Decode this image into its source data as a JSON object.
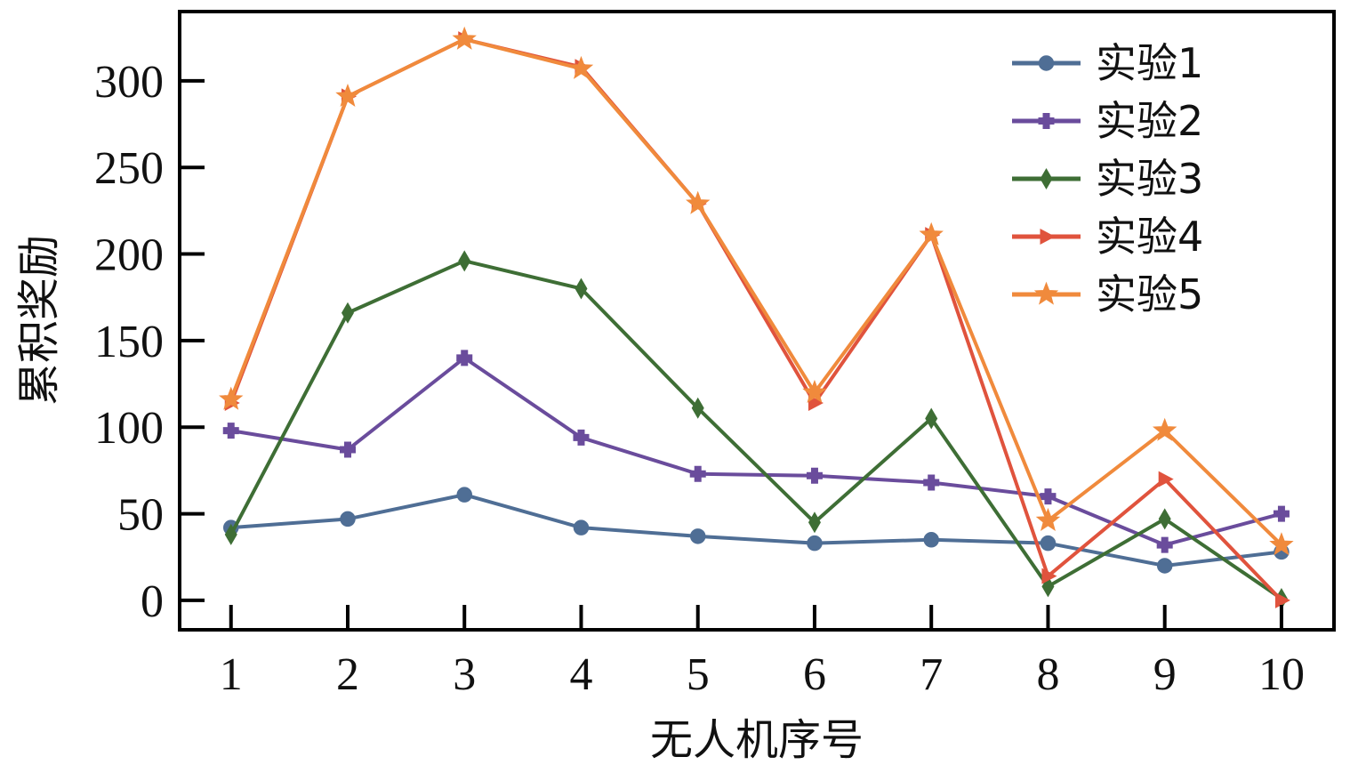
{
  "chart_data": {
    "type": "line",
    "title": "",
    "xlabel": "无人机序号",
    "ylabel": "累积奖励",
    "x": [
      1,
      2,
      3,
      4,
      5,
      6,
      7,
      8,
      9,
      10
    ],
    "xticks": [
      "1",
      "2",
      "3",
      "4",
      "5",
      "6",
      "7",
      "8",
      "9",
      "10"
    ],
    "yticks": [
      0,
      50,
      100,
      150,
      200,
      250,
      300
    ],
    "xlim": [
      0.56,
      10.45
    ],
    "ylim": [
      -17,
      340
    ],
    "grid": false,
    "legend_position": "top-right",
    "series": [
      {
        "name": "实验1",
        "color": "#4f6e95",
        "marker": "circle",
        "values": [
          42,
          47,
          61,
          42,
          37,
          33,
          35,
          33,
          20,
          28
        ]
      },
      {
        "name": "实验2",
        "color": "#6a4c9c",
        "marker": "plus",
        "values": [
          98,
          87,
          140,
          94,
          73,
          72,
          68,
          60,
          32,
          50
        ]
      },
      {
        "name": "实验3",
        "color": "#3e6e35",
        "marker": "diamond",
        "values": [
          38,
          166,
          196,
          180,
          111,
          45,
          105,
          8,
          47,
          1
        ]
      },
      {
        "name": "实验4",
        "color": "#e0533d",
        "marker": "triangle-right",
        "values": [
          114,
          291,
          324,
          308,
          229,
          114,
          211,
          14,
          70,
          0
        ]
      },
      {
        "name": "实验5",
        "color": "#f08a3c",
        "marker": "star",
        "values": [
          116,
          291,
          324,
          307,
          229,
          120,
          211,
          46,
          98,
          32
        ]
      }
    ]
  }
}
